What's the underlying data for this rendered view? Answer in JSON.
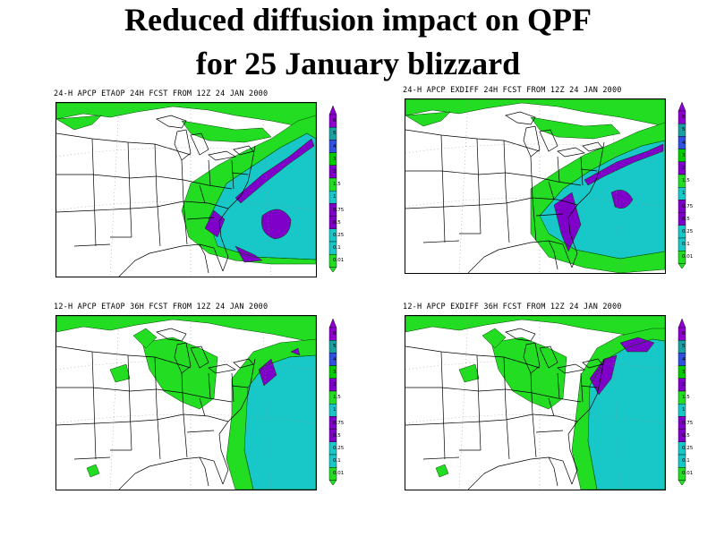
{
  "title": {
    "line1": "Reduced diffusion impact on QPF",
    "line2": "for 25 January blizzard"
  },
  "colors": {
    "c001": "#22dd22",
    "c025": "#18c8c8",
    "c075": "#7f00c8",
    "c3": "#00cc00",
    "c4": "#3050e0",
    "c5": "#1aa0a0",
    "c6": "#8e00d0",
    "boundary": "#000000"
  },
  "legend": {
    "labels": [
      "6",
      "5",
      "4",
      "3",
      "2",
      "1.5",
      "1",
      "0.75",
      "0.5",
      "0.25",
      "0.1",
      "0.01"
    ]
  },
  "panels": [
    {
      "title": "24-H  APCP  ETAOP  24H  FCST  FROM  12Z  24  JAN  2000"
    },
    {
      "title": "24-H  APCP  EXDIFF  24H  FCST  FROM  12Z  24  JAN  2000"
    },
    {
      "title": "12-H  APCP  ETAOP  36H  FCST  FROM  12Z  24  JAN  2000"
    },
    {
      "title": "12-H  APCP  EXDIFF  36H  FCST  FROM  12Z  24  JAN  2000"
    }
  ]
}
